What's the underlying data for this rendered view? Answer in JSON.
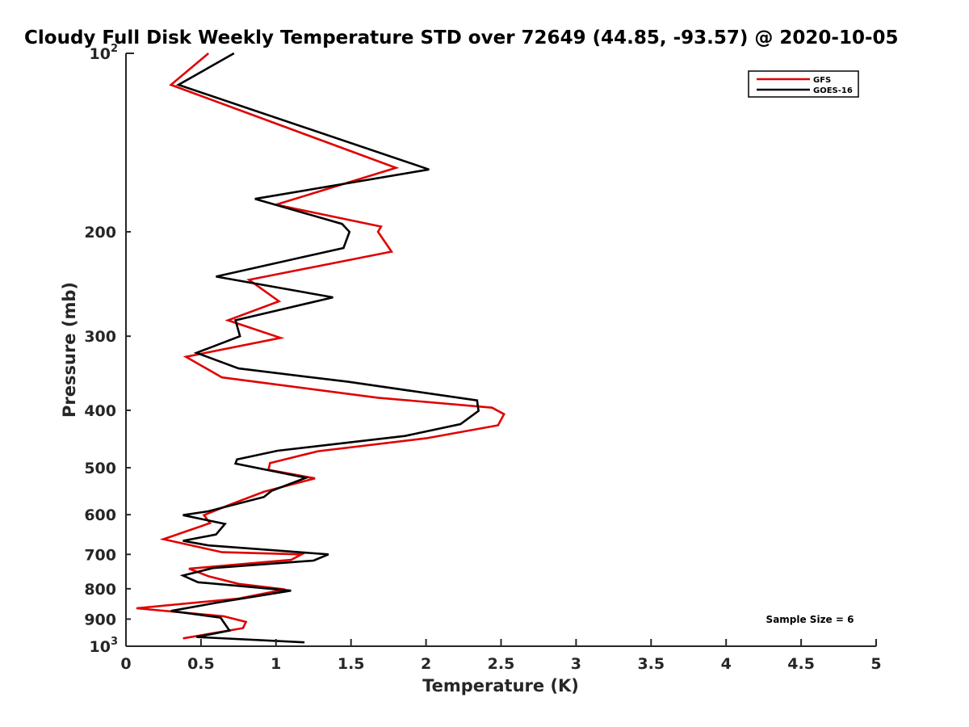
{
  "chart_data": {
    "type": "line",
    "title": "Cloudy Full Disk Weekly Temperature STD over 72649 (44.85, -93.57) @ 2020-10-05",
    "xlabel": "Temperature (K)",
    "ylabel": "Pressure (mb)",
    "xlim": [
      0,
      5
    ],
    "ylim": [
      100,
      1000
    ],
    "yscale": "log",
    "y_reversed": true,
    "xticks": [
      0,
      0.5,
      1,
      1.5,
      2,
      2.5,
      3,
      3.5,
      4,
      4.5,
      5
    ],
    "xtick_labels": [
      "0",
      "0.5",
      "1",
      "1.5",
      "2",
      "2.5",
      "3",
      "3.5",
      "4",
      "4.5",
      "5"
    ],
    "yticks": [
      {
        "value": 100,
        "base": "10",
        "exp": "2"
      },
      {
        "value": 200,
        "label": "200"
      },
      {
        "value": 300,
        "label": "300"
      },
      {
        "value": 400,
        "label": "400"
      },
      {
        "value": 500,
        "label": "500"
      },
      {
        "value": 600,
        "label": "600"
      },
      {
        "value": 700,
        "label": "700"
      },
      {
        "value": 800,
        "label": "800"
      },
      {
        "value": 900,
        "label": "900"
      },
      {
        "value": 1000,
        "base": "10",
        "exp": "3"
      }
    ],
    "grid": false,
    "legend_position": "top-right",
    "annotation": "Sample Size = 6",
    "series": [
      {
        "name": "GFS",
        "color": "#e00000",
        "points": [
          [
            0.55,
            100
          ],
          [
            0.3,
            113
          ],
          [
            1.8,
            156
          ],
          [
            1.0,
            180
          ],
          [
            1.7,
            196
          ],
          [
            1.68,
            200
          ],
          [
            1.77,
            216
          ],
          [
            0.82,
            241
          ],
          [
            1.02,
            262
          ],
          [
            0.68,
            282
          ],
          [
            1.03,
            302
          ],
          [
            0.4,
            325
          ],
          [
            0.64,
            352
          ],
          [
            1.68,
            381
          ],
          [
            2.44,
            396
          ],
          [
            2.52,
            406
          ],
          [
            2.48,
            424
          ],
          [
            2.0,
            446
          ],
          [
            1.28,
            469
          ],
          [
            0.96,
            491
          ],
          [
            0.95,
            504
          ],
          [
            1.26,
            521
          ],
          [
            0.92,
            549
          ],
          [
            0.7,
            576
          ],
          [
            0.52,
            601
          ],
          [
            0.56,
            620
          ],
          [
            0.25,
            660
          ],
          [
            0.64,
            694
          ],
          [
            1.17,
            700
          ],
          [
            1.1,
            715
          ],
          [
            0.42,
            740
          ],
          [
            0.55,
            762
          ],
          [
            0.75,
            785
          ],
          [
            1.06,
            802
          ],
          [
            0.75,
            831
          ],
          [
            0.07,
            863
          ],
          [
            0.65,
            890
          ],
          [
            0.8,
            910
          ],
          [
            0.78,
            932
          ],
          [
            0.38,
            970
          ]
        ]
      },
      {
        "name": "GOES-16",
        "color": "#000000",
        "points": [
          [
            0.72,
            100
          ],
          [
            0.35,
            113
          ],
          [
            2.02,
            157
          ],
          [
            0.86,
            176
          ],
          [
            1.44,
            194
          ],
          [
            1.49,
            200
          ],
          [
            1.45,
            213
          ],
          [
            0.6,
            238
          ],
          [
            1.38,
            258
          ],
          [
            0.73,
            282
          ],
          [
            0.76,
            300
          ],
          [
            0.47,
            320
          ],
          [
            0.75,
            340
          ],
          [
            1.48,
            358
          ],
          [
            2.34,
            385
          ],
          [
            2.35,
            401
          ],
          [
            2.23,
            422
          ],
          [
            1.86,
            442
          ],
          [
            1.01,
            468
          ],
          [
            0.74,
            484
          ],
          [
            0.73,
            492
          ],
          [
            1.2,
            520
          ],
          [
            0.97,
            547
          ],
          [
            0.92,
            560
          ],
          [
            0.55,
            592
          ],
          [
            0.38,
            601
          ],
          [
            0.66,
            622
          ],
          [
            0.6,
            648
          ],
          [
            0.38,
            664
          ],
          [
            0.55,
            676
          ],
          [
            1.35,
            700
          ],
          [
            1.25,
            717
          ],
          [
            0.58,
            738
          ],
          [
            0.38,
            760
          ],
          [
            0.48,
            780
          ],
          [
            1.1,
            806
          ],
          [
            0.62,
            843
          ],
          [
            0.3,
            872
          ],
          [
            0.63,
            895
          ],
          [
            0.69,
            941
          ],
          [
            0.47,
            965
          ],
          [
            1.19,
            985
          ]
        ]
      }
    ]
  }
}
